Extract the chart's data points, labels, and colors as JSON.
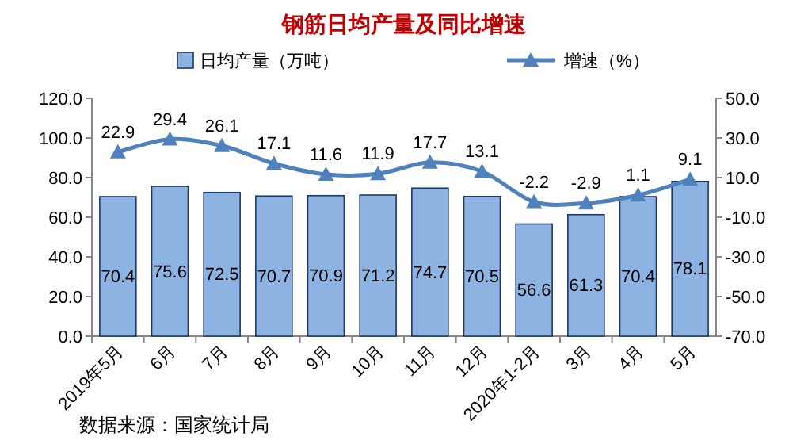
{
  "chart_data": {
    "type": "bar",
    "title": "钢筋日均产量及同比增速",
    "categories": [
      "2019年5月",
      "6月",
      "7月",
      "8月",
      "9月",
      "10月",
      "11月",
      "12月",
      "2020年1-2月",
      "3月",
      "4月",
      "5月"
    ],
    "series": [
      {
        "name": "日均产量（万吨）",
        "color": "#8db3e2",
        "values": [
          70.4,
          75.6,
          72.5,
          70.7,
          70.9,
          71.2,
          74.7,
          70.5,
          56.6,
          61.3,
          70.4,
          78.1
        ]
      },
      {
        "name": "增速（%）",
        "type": "line",
        "axis": "y2",
        "color": "#4f81bd",
        "marker": "triangle",
        "values": [
          22.9,
          29.4,
          26.1,
          17.1,
          11.6,
          11.9,
          17.7,
          13.1,
          -2.2,
          -2.9,
          1.1,
          9.1
        ]
      }
    ],
    "ylim": [
      0,
      120
    ],
    "yticks": [
      {
        "value": 0,
        "label": "0.0"
      },
      {
        "value": 20,
        "label": "20.0"
      },
      {
        "value": 40,
        "label": "40.0"
      },
      {
        "value": 60,
        "label": "60.0"
      },
      {
        "value": 80,
        "label": "80.0"
      },
      {
        "value": 100,
        "label": "100.0"
      },
      {
        "value": 120,
        "label": "120.0"
      }
    ],
    "y2lim": [
      -70,
      50
    ],
    "y2ticks": [
      {
        "value": -70,
        "label": "-70.0"
      },
      {
        "value": -50,
        "label": "-50.0"
      },
      {
        "value": -30,
        "label": "-30.0"
      },
      {
        "value": -10,
        "label": "-10.0"
      },
      {
        "value": 10,
        "label": "10.0"
      },
      {
        "value": 30,
        "label": "30.0"
      },
      {
        "value": 50,
        "label": "50.0"
      }
    ],
    "data_labels": true,
    "legend": "top",
    "annotations": [
      "数据来源：国家统计局"
    ]
  }
}
